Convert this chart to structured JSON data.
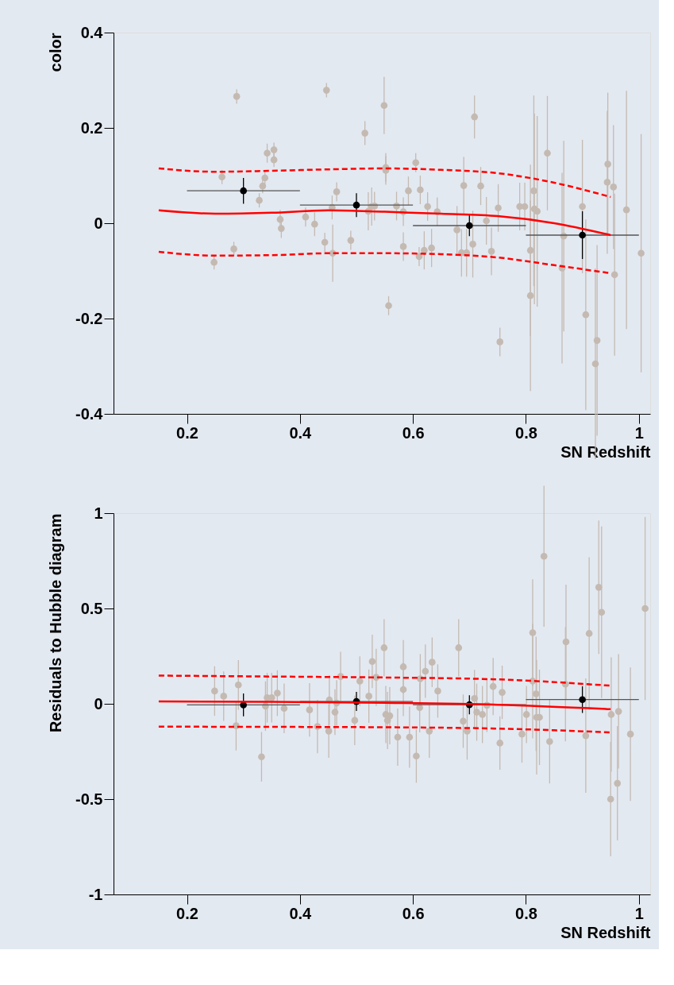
{
  "chart_data": [
    {
      "type": "scatter",
      "xlabel": "SN Redshift",
      "ylabel": "color",
      "xlim": [
        0.07,
        1.02
      ],
      "ylim": [
        -0.4,
        0.4
      ],
      "xticks": [
        0.2,
        0.4,
        0.6,
        0.8,
        1
      ],
      "yticks": [
        -0.4,
        -0.2,
        0,
        0.2,
        0.4
      ],
      "grid": false,
      "marker": "circle",
      "series": [
        {
          "color": "#c4bab2",
          "x": [
            0.288,
            0.447,
            0.515,
            0.342,
            0.354,
            0.354,
            0.262,
            0.338,
            0.334,
            0.328,
            0.465,
            0.457,
            0.365,
            0.367,
            0.41,
            0.426,
            0.444,
            0.458,
            0.49,
            0.283,
            0.248,
            0.521,
            0.527,
            0.549,
            0.552,
            0.552,
            0.605,
            0.69,
            0.72,
            0.592,
            0.613,
            0.709,
            0.838,
            0.945,
            0.944,
            0.955,
            0.814,
            0.532,
            0.571,
            0.583,
            0.626,
            0.643,
            0.751,
            0.789,
            0.798,
            0.815,
            0.82,
            0.9,
            0.978,
            0.678,
            0.73,
            0.706,
            0.583,
            0.611,
            0.62,
            0.633,
            0.686,
            0.695,
            0.739,
            0.808,
            0.867,
            0.864,
            0.957,
            1.004,
            0.557,
            0.808,
            0.754,
            0.906,
            0.926,
            0.923
          ],
          "values": [
            0.266,
            0.279,
            0.189,
            0.147,
            0.154,
            0.133,
            0.097,
            0.095,
            0.078,
            0.048,
            0.066,
            0.033,
            0.008,
            -0.011,
            0.013,
            -0.002,
            -0.04,
            -0.063,
            -0.036,
            -0.054,
            -0.082,
            0.025,
            0.035,
            0.247,
            0.117,
            0.111,
            0.127,
            0.079,
            0.078,
            0.068,
            0.07,
            0.223,
            0.147,
            0.124,
            0.086,
            0.076,
            0.068,
            0.036,
            0.036,
            0.024,
            0.035,
            0.024,
            0.032,
            0.035,
            0.035,
            0.03,
            0.025,
            0.035,
            0.028,
            -0.014,
            0.005,
            -0.044,
            -0.049,
            -0.07,
            -0.057,
            -0.052,
            -0.062,
            -0.062,
            -0.059,
            -0.057,
            -0.027,
            -0.094,
            -0.108,
            -0.063,
            -0.173,
            -0.152,
            -0.249,
            -0.192,
            -0.246,
            -0.295
          ],
          "errors": [
            0.015,
            0.015,
            0.025,
            0.02,
            0.015,
            0.015,
            0.015,
            0.015,
            0.015,
            0.015,
            0.02,
            0.025,
            0.02,
            0.02,
            0.02,
            0.025,
            0.02,
            0.06,
            0.02,
            0.015,
            0.015,
            0.04,
            0.04,
            0.06,
            0.03,
            0.03,
            0.02,
            0.06,
            0.04,
            0.03,
            0.03,
            0.045,
            0.12,
            0.15,
            0.15,
            0.13,
            0.2,
            0.03,
            0.03,
            0.03,
            0.03,
            0.03,
            0.05,
            0.05,
            0.05,
            0.2,
            0.2,
            0.14,
            0.25,
            0.05,
            0.05,
            0.07,
            0.03,
            0.02,
            0.04,
            0.04,
            0.05,
            0.05,
            0.05,
            0.18,
            0.2,
            0.2,
            0.17,
            0.25,
            0.02,
            0.2,
            0.03,
            0.2,
            0.2,
            0.2
          ]
        },
        {
          "color": "#000000",
          "x": [
            0.3,
            0.5,
            0.7,
            0.9
          ],
          "values": [
            0.068,
            0.038,
            -0.005,
            -0.025
          ],
          "errors": [
            0.027,
            0.025,
            0.022,
            0.05
          ],
          "xerrors": [
            0.1,
            0.1,
            0.1,
            0.1
          ]
        },
        {
          "type": "line",
          "color": "#ff0000",
          "line_style": "solid",
          "marker": "none",
          "x": [
            0.15,
            0.25,
            0.35,
            0.45,
            0.55,
            0.65,
            0.75,
            0.85,
            0.95
          ],
          "values": [
            0.027,
            0.02,
            0.022,
            0.027,
            0.024,
            0.02,
            0.015,
            0.0,
            -0.025
          ]
        },
        {
          "type": "line",
          "color": "#ff0000",
          "line_style": "dashed",
          "marker": "none",
          "x": [
            0.15,
            0.25,
            0.35,
            0.45,
            0.55,
            0.65,
            0.75,
            0.85,
            0.95
          ],
          "values": [
            0.115,
            0.108,
            0.11,
            0.113,
            0.115,
            0.112,
            0.105,
            0.085,
            0.055
          ]
        },
        {
          "type": "line",
          "color": "#ff0000",
          "line_style": "dashed",
          "marker": "none",
          "x": [
            0.15,
            0.25,
            0.35,
            0.45,
            0.55,
            0.65,
            0.75,
            0.85,
            0.95
          ],
          "values": [
            -0.06,
            -0.068,
            -0.067,
            -0.063,
            -0.063,
            -0.065,
            -0.072,
            -0.088,
            -0.105
          ]
        }
      ]
    },
    {
      "type": "scatter",
      "xlabel": "SN Redshift",
      "ylabel": "Residuals to Hubble diagram",
      "xlim": [
        0.07,
        1.02
      ],
      "ylim": [
        -1,
        1
      ],
      "xticks": [
        0.2,
        0.4,
        0.6,
        0.8,
        1
      ],
      "yticks": [
        -1,
        -0.5,
        0,
        0.5,
        1
      ],
      "grid": false,
      "marker": "circle",
      "series": [
        {
          "color": "#c4bab2",
          "x": [
            0.249,
            0.265,
            0.291,
            0.287,
            0.332,
            0.339,
            0.342,
            0.35,
            0.36,
            0.372,
            0.417,
            0.431,
            0.451,
            0.452,
            0.465,
            0.462,
            0.472,
            0.497,
            0.506,
            0.522,
            0.528,
            0.535,
            0.549,
            0.552,
            0.555,
            0.559,
            0.573,
            0.583,
            0.583,
            0.594,
            0.606,
            0.612,
            0.613,
            0.622,
            0.629,
            0.634,
            0.644,
            0.681,
            0.689,
            0.696,
            0.709,
            0.713,
            0.723,
            0.731,
            0.742,
            0.754,
            0.758,
            0.793,
            0.801,
            0.812,
            0.812,
            0.818,
            0.819,
            0.824,
            0.832,
            0.842,
            0.87,
            0.871,
            0.906,
            0.912,
            0.929,
            0.934,
            0.951,
            0.964,
            0.95,
            0.962,
            0.985,
            1.011
          ],
          "values": [
            0.067,
            0.04,
            0.099,
            -0.115,
            -0.278,
            -0.012,
            0.032,
            0.032,
            0.056,
            -0.024,
            -0.032,
            -0.119,
            -0.143,
            0.02,
            0.004,
            -0.044,
            0.143,
            -0.087,
            0.119,
            0.04,
            0.222,
            0.139,
            0.294,
            -0.056,
            -0.087,
            -0.063,
            -0.175,
            0.194,
            0.075,
            -0.175,
            -0.274,
            -0.02,
            0.131,
            0.171,
            -0.143,
            0.218,
            0.067,
            0.294,
            -0.091,
            -0.143,
            0.028,
            -0.044,
            -0.056,
            -0.008,
            0.091,
            -0.206,
            0.06,
            -0.159,
            -0.056,
            0.373,
            0.119,
            0.052,
            -0.071,
            -0.071,
            0.774,
            -0.198,
            0.103,
            0.325,
            -0.167,
            0.369,
            0.611,
            0.48,
            -0.056,
            -0.04,
            -0.5,
            -0.417,
            -0.159,
            0.5
          ],
          "errors": [
            0.13,
            0.13,
            0.13,
            0.13,
            0.13,
            0.13,
            0.13,
            0.13,
            0.12,
            0.13,
            0.14,
            0.14,
            0.14,
            0.13,
            0.12,
            0.12,
            0.13,
            0.13,
            0.13,
            0.14,
            0.14,
            0.15,
            0.15,
            0.15,
            0.15,
            0.15,
            0.15,
            0.14,
            0.14,
            0.16,
            0.14,
            0.13,
            0.13,
            0.14,
            0.14,
            0.13,
            0.14,
            0.15,
            0.14,
            0.15,
            0.15,
            0.15,
            0.15,
            0.14,
            0.15,
            0.14,
            0.14,
            0.15,
            0.15,
            0.28,
            0.3,
            0.3,
            0.3,
            0.25,
            0.37,
            0.22,
            0.3,
            0.3,
            0.3,
            0.4,
            0.35,
            0.45,
            0.3,
            0.3,
            0.3,
            0.3,
            0.35,
            0.48
          ]
        },
        {
          "color": "#000000",
          "x": [
            0.3,
            0.5,
            0.7,
            0.9
          ],
          "values": [
            -0.006,
            0.012,
            -0.005,
            0.022
          ],
          "errors": [
            0.06,
            0.05,
            0.05,
            0.07
          ],
          "xerrors": [
            0.1,
            0.1,
            0.1,
            0.1
          ]
        },
        {
          "type": "line",
          "color": "#ff0000",
          "line_style": "solid",
          "marker": "none",
          "x": [
            0.15,
            0.35,
            0.55,
            0.75,
            0.95
          ],
          "values": [
            0.012,
            0.01,
            0.005,
            -0.005,
            -0.028
          ]
        },
        {
          "type": "line",
          "color": "#ff0000",
          "line_style": "dashed",
          "marker": "none",
          "x": [
            0.15,
            0.35,
            0.55,
            0.75,
            0.95
          ],
          "values": [
            0.148,
            0.143,
            0.138,
            0.128,
            0.095
          ]
        },
        {
          "type": "line",
          "color": "#ff0000",
          "line_style": "dashed",
          "marker": "none",
          "x": [
            0.15,
            0.35,
            0.55,
            0.75,
            0.95
          ],
          "values": [
            -0.12,
            -0.121,
            -0.123,
            -0.13,
            -0.15
          ]
        }
      ]
    }
  ]
}
